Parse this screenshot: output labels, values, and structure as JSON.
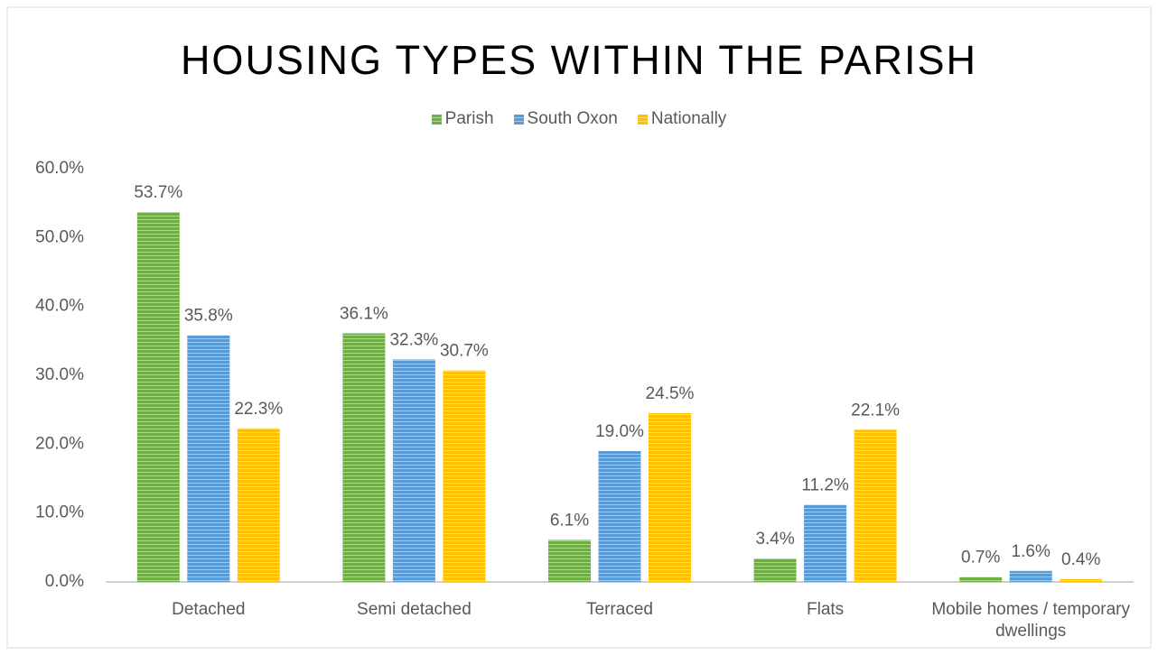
{
  "chart_data": {
    "type": "bar",
    "title": "HOUSING TYPES WITHIN THE PARISH",
    "categories": [
      "Detached",
      "Semi detached",
      "Terraced",
      "Flats",
      "Mobile homes / temporary dwellings"
    ],
    "series": [
      {
        "name": "Parish",
        "color": "#70ad47",
        "values": [
          53.7,
          36.1,
          6.1,
          3.4,
          0.7
        ],
        "value_labels": [
          "53.7%",
          "36.1%",
          "6.1%",
          "3.4%",
          "0.7%"
        ]
      },
      {
        "name": "South Oxon",
        "color": "#5b9bd5",
        "values": [
          35.8,
          32.3,
          19.0,
          11.2,
          1.6
        ],
        "value_labels": [
          "35.8%",
          "32.3%",
          "19.0%",
          "11.2%",
          "1.6%"
        ]
      },
      {
        "name": "Nationally",
        "color": "#ffc000",
        "values": [
          22.3,
          30.7,
          24.5,
          22.1,
          0.4
        ],
        "value_labels": [
          "22.3%",
          "30.7%",
          "24.5%",
          "22.1%",
          "0.4%"
        ]
      }
    ],
    "ylim": [
      0,
      60
    ],
    "yticks": [
      {
        "value": 0,
        "label": "0.0%"
      },
      {
        "value": 10,
        "label": "10.0%"
      },
      {
        "value": 20,
        "label": "20.0%"
      },
      {
        "value": 30,
        "label": "30.0%"
      },
      {
        "value": 40,
        "label": "40.0%"
      },
      {
        "value": 50,
        "label": "50.0%"
      },
      {
        "value": 60,
        "label": "60.0%"
      }
    ],
    "grid": false,
    "legend": "top"
  }
}
